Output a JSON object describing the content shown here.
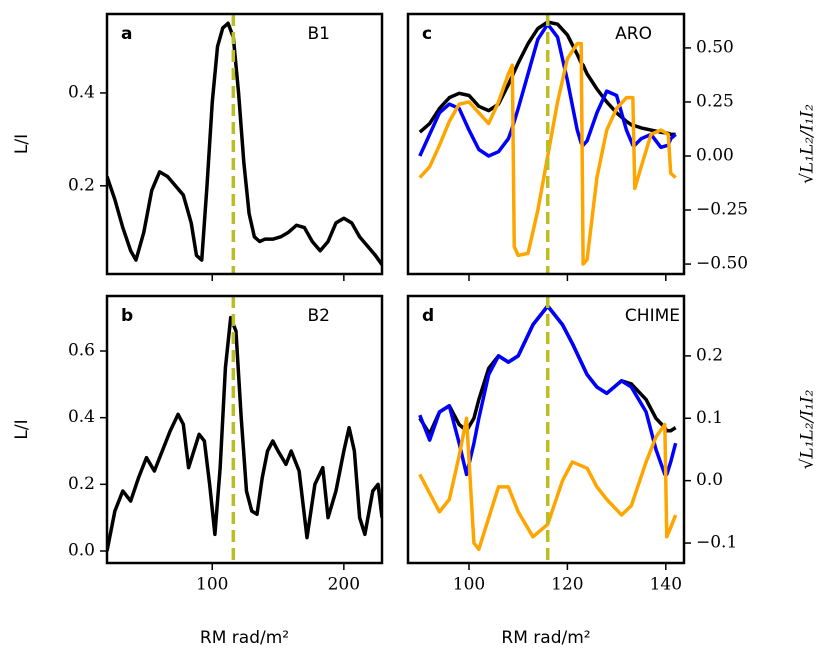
{
  "chart_data": [
    {
      "type": "line",
      "panel_label": "a",
      "name": "B1",
      "ylabel": "L/I",
      "x": [
        20,
        26,
        32,
        38,
        42,
        48,
        54,
        60,
        66,
        72,
        78,
        84,
        88,
        92,
        96,
        100,
        104,
        108,
        112,
        116,
        120,
        124,
        128,
        132,
        136,
        140,
        146,
        152,
        158,
        164,
        170,
        176,
        182,
        188,
        194,
        200,
        206,
        212,
        218,
        224,
        229
      ],
      "series": [
        {
          "color": "#000000",
          "values": [
            0.22,
            0.17,
            0.11,
            0.06,
            0.04,
            0.1,
            0.19,
            0.23,
            0.22,
            0.2,
            0.18,
            0.12,
            0.05,
            0.04,
            0.2,
            0.38,
            0.5,
            0.54,
            0.55,
            0.52,
            0.4,
            0.25,
            0.14,
            0.09,
            0.08,
            0.085,
            0.085,
            0.09,
            0.1,
            0.115,
            0.11,
            0.08,
            0.06,
            0.08,
            0.12,
            0.13,
            0.12,
            0.09,
            0.07,
            0.05,
            0.03
          ]
        }
      ],
      "xlim": [
        20,
        229
      ],
      "xticks": [
        100,
        200
      ],
      "xtick_labels": false,
      "ylim": [
        0.01,
        0.57
      ],
      "yticks": [
        0.2,
        0.4
      ],
      "y_axis": "left",
      "vline": {
        "x": 116,
        "color": "#bcbd22",
        "style": "dashed"
      }
    },
    {
      "type": "line",
      "panel_label": "b",
      "name": "B2",
      "ylabel": "L/I",
      "xlabel": "RM rad/m²",
      "x": [
        20,
        26,
        32,
        38,
        44,
        50,
        56,
        62,
        68,
        74,
        78,
        82,
        86,
        90,
        94,
        98,
        102,
        106,
        110,
        114,
        118,
        122,
        126,
        130,
        134,
        138,
        142,
        146,
        150,
        156,
        160,
        166,
        172,
        178,
        184,
        188,
        194,
        200,
        204,
        208,
        212,
        216,
        222,
        226,
        229
      ],
      "series": [
        {
          "color": "#000000",
          "values": [
            0.0,
            0.12,
            0.18,
            0.15,
            0.22,
            0.28,
            0.24,
            0.3,
            0.36,
            0.41,
            0.38,
            0.25,
            0.3,
            0.35,
            0.33,
            0.2,
            0.05,
            0.25,
            0.55,
            0.7,
            0.66,
            0.4,
            0.18,
            0.12,
            0.11,
            0.22,
            0.3,
            0.33,
            0.3,
            0.26,
            0.3,
            0.24,
            0.04,
            0.2,
            0.25,
            0.1,
            0.18,
            0.3,
            0.37,
            0.3,
            0.1,
            0.05,
            0.18,
            0.2,
            0.1
          ]
        }
      ],
      "xlim": [
        20,
        229
      ],
      "xticks": [
        100,
        200
      ],
      "xtick_labels": true,
      "ylim": [
        -0.036,
        0.765
      ],
      "yticks": [
        {
          "value": 0,
          "label": "0.0"
        },
        0.2,
        0.4,
        0.6
      ],
      "y_axis": "left",
      "vline": {
        "x": 116,
        "color": "#bcbd22",
        "style": "dashed"
      }
    },
    {
      "type": "line",
      "panel_label": "c",
      "name": "ARO",
      "ylabel": "√L₁L₂/I₁I₂",
      "x": [
        90,
        92,
        94,
        96,
        98,
        100,
        102,
        104,
        106,
        108,
        108.8,
        109.2,
        110,
        112,
        114,
        116,
        118,
        120,
        122,
        122.8,
        123.2,
        124,
        126,
        128,
        130,
        132,
        133.3,
        133.7,
        135,
        137,
        139,
        140.5,
        141,
        142
      ],
      "series": [
        {
          "color": "#000000",
          "values": [
            0.11,
            0.15,
            0.22,
            0.27,
            0.29,
            0.28,
            0.23,
            0.21,
            0.24,
            0.33,
            0.37,
            0.39,
            0.43,
            0.52,
            0.59,
            0.62,
            0.61,
            0.56,
            0.47,
            0.43,
            0.42,
            0.38,
            0.31,
            0.25,
            0.2,
            0.16,
            0.14,
            0.14,
            0.13,
            0.12,
            0.11,
            0.105,
            0.1,
            0.1
          ]
        },
        {
          "color": "#0000ff",
          "values": [
            0.0,
            0.1,
            0.2,
            0.24,
            0.22,
            0.12,
            0.03,
            0.0,
            0.02,
            0.08,
            0.13,
            0.16,
            0.22,
            0.38,
            0.54,
            0.61,
            0.55,
            0.35,
            0.12,
            0.06,
            0.05,
            0.07,
            0.2,
            0.3,
            0.28,
            0.12,
            0.05,
            0.05,
            0.08,
            0.1,
            0.04,
            0.05,
            0.08,
            0.1
          ]
        },
        {
          "color": "#ffa500",
          "values": [
            -0.1,
            -0.05,
            0.05,
            0.16,
            0.24,
            0.25,
            0.2,
            0.15,
            0.25,
            0.38,
            0.42,
            -0.42,
            -0.46,
            -0.45,
            -0.25,
            0.0,
            0.25,
            0.45,
            0.52,
            0.52,
            -0.5,
            -0.48,
            -0.1,
            0.12,
            0.22,
            0.27,
            0.27,
            -0.15,
            -0.05,
            0.1,
            0.12,
            0.1,
            -0.08,
            -0.1
          ]
        }
      ],
      "xlim": [
        87.6,
        143.7
      ],
      "xticks": [
        100,
        120,
        140
      ],
      "xtick_labels": false,
      "ylim": [
        -0.546,
        0.657
      ],
      "yticks": [
        {
          "value": 0.5,
          "label": "0.50"
        },
        0.25,
        {
          "value": 0,
          "label": "0.00"
        },
        {
          "value": -0.25,
          "label": "−0.25"
        },
        {
          "value": -0.5,
          "label": "−0.50"
        }
      ],
      "y_axis": "right",
      "vline": {
        "x": 116,
        "color": "#bcbd22",
        "style": "dashed"
      }
    },
    {
      "type": "line",
      "panel_label": "d",
      "name": "CHIME",
      "ylabel": "√L₁L₂/I₁I₂",
      "xlabel": "RM rad/m²",
      "x": [
        90,
        92,
        94,
        96,
        98,
        99.5,
        101,
        102,
        104,
        106,
        108,
        110,
        113,
        116,
        119,
        121,
        124,
        126,
        128,
        131,
        133,
        136,
        138,
        139.8,
        140.2,
        141,
        142
      ],
      "series": [
        {
          "color": "#000000",
          "values": [
            0.1,
            0.075,
            0.11,
            0.12,
            0.09,
            0.08,
            0.1,
            0.13,
            0.18,
            0.2,
            0.19,
            0.2,
            0.25,
            0.28,
            0.25,
            0.22,
            0.17,
            0.15,
            0.14,
            0.16,
            0.155,
            0.13,
            0.1,
            0.085,
            0.08,
            0.08,
            0.085
          ]
        },
        {
          "color": "#0000ff",
          "values": [
            0.105,
            0.065,
            0.11,
            0.12,
            0.06,
            0.01,
            0.06,
            0.1,
            0.17,
            0.2,
            0.19,
            0.2,
            0.25,
            0.28,
            0.25,
            0.22,
            0.17,
            0.15,
            0.14,
            0.16,
            0.15,
            0.11,
            0.05,
            0.01,
            0.01,
            0.03,
            0.06
          ]
        },
        {
          "color": "#ffa500",
          "values": [
            0.01,
            -0.02,
            -0.05,
            -0.03,
            0.04,
            0.1,
            -0.1,
            -0.11,
            -0.06,
            -0.01,
            -0.01,
            -0.05,
            -0.09,
            -0.07,
            0.0,
            0.03,
            0.02,
            -0.01,
            -0.03,
            -0.055,
            -0.04,
            0.03,
            0.07,
            0.09,
            -0.09,
            -0.075,
            -0.055
          ]
        }
      ],
      "xlim": [
        87.6,
        143.7
      ],
      "xticks": [
        100,
        120,
        140
      ],
      "xtick_labels": true,
      "ylim": [
        -0.132,
        0.296
      ],
      "yticks": [
        0.2,
        0.1,
        {
          "value": 0,
          "label": "0.0"
        },
        {
          "value": -0.1,
          "label": "−0.1"
        }
      ],
      "y_axis": "right",
      "vline": {
        "x": 116,
        "color": "#bcbd22",
        "style": "dashed"
      }
    }
  ]
}
